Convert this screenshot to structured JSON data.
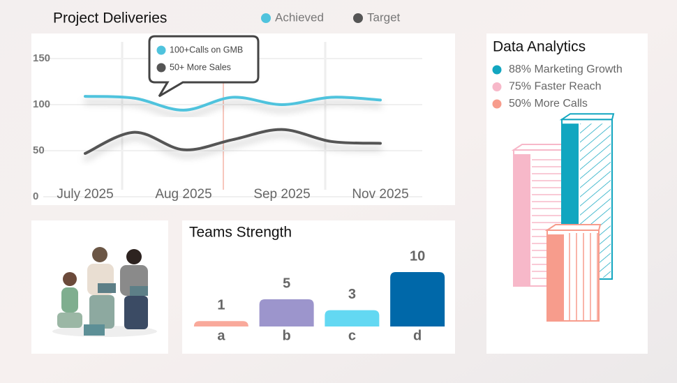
{
  "chart_data": [
    {
      "type": "line",
      "title": "Project Deliveries",
      "categories": [
        "July 2025",
        null,
        "Aug 2025",
        null,
        "Sep 2025",
        null,
        "Nov 2025"
      ],
      "series": [
        {
          "name": "Achieved",
          "color": "#4fc3dd",
          "values": [
            109,
            107,
            94,
            108,
            100,
            108,
            105
          ]
        },
        {
          "name": "Target",
          "color": "#555555",
          "values": [
            47,
            70,
            51,
            62,
            73,
            60,
            58
          ]
        }
      ],
      "annotation": [
        "100+Calls on GMB",
        "50+ More Sales"
      ],
      "ylim": [
        0,
        150
      ],
      "yticks": [
        0,
        50,
        100,
        150
      ],
      "grid": true
    },
    {
      "type": "bar",
      "title": "Teams Strength",
      "categories": [
        "a",
        "b",
        "c",
        "d"
      ],
      "values": [
        1,
        5,
        3,
        10
      ],
      "colors": [
        "#f9a99b",
        "#9c95cc",
        "#63d8f2",
        "#0068a9"
      ]
    },
    {
      "type": "bar3d",
      "title": "Data Analytics",
      "series": [
        {
          "name": "88% Marketing Growth",
          "color": "#12a6c0",
          "values": [
            88
          ]
        },
        {
          "name": "75% Faster Reach",
          "color": "#f7b8c9",
          "values": [
            75
          ]
        },
        {
          "name": "50% More Calls",
          "color": "#f79c8c",
          "values": [
            50
          ]
        }
      ]
    }
  ]
}
